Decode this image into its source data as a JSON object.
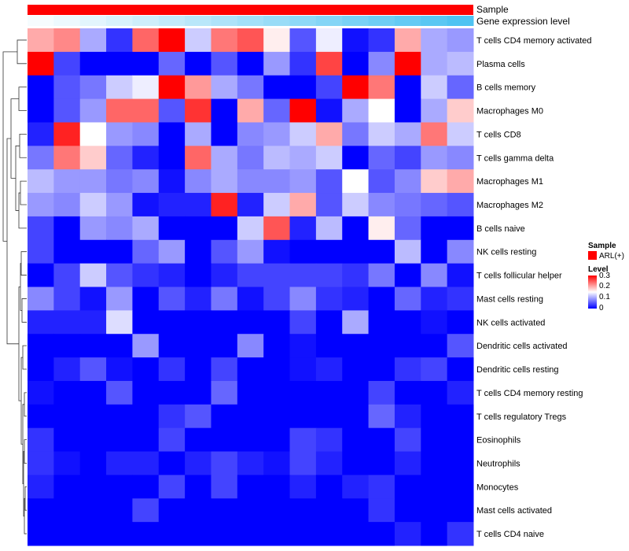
{
  "chart_data": {
    "type": "heatmap",
    "annotations": {
      "sample_label": "Sample",
      "gene_label": "Gene expression level"
    },
    "rows": [
      "T cells CD4 memory activated",
      "Plasma cells",
      "B cells memory",
      "Macrophages M0",
      "T cells CD8",
      "T cells gamma delta",
      "Macrophages M1",
      "Macrophages M2",
      "B cells naive",
      "NK cells resting",
      "T cells follicular helper",
      "Mast cells resting",
      "NK cells activated",
      "Dendritic cells activated",
      "Dendritic cells resting",
      "T cells CD4 memory resting",
      "T cells regulatory  Tregs",
      "Eosinophils",
      "Neutrophils",
      "Monocytes",
      "Mast cells activated",
      "T cells CD4 naive"
    ],
    "values": [
      [
        0.2,
        0.22,
        0.1,
        0.03,
        0.24,
        0.3,
        0.12,
        0.23,
        0.25,
        0.16,
        0.05,
        0.14,
        0.01,
        0.03,
        0.2,
        0.1,
        0.09
      ],
      [
        0.3,
        0.04,
        0.0,
        0.0,
        0.0,
        0.06,
        0.0,
        0.05,
        0.0,
        0.09,
        0.03,
        0.26,
        0.0,
        0.08,
        0.3,
        0.1,
        0.11
      ],
      [
        0.0,
        0.05,
        0.07,
        0.12,
        0.14,
        0.3,
        0.21,
        0.1,
        0.07,
        0.0,
        0.0,
        0.04,
        0.3,
        0.23,
        0.0,
        0.12,
        0.06
      ],
      [
        0.0,
        0.05,
        0.09,
        0.24,
        0.24,
        0.05,
        0.27,
        0.0,
        0.2,
        0.06,
        0.3,
        0.01,
        0.1,
        0.15,
        0.0,
        0.1,
        0.18
      ],
      [
        0.02,
        0.28,
        0.15,
        0.09,
        0.08,
        0.0,
        0.1,
        0.0,
        0.08,
        0.09,
        0.12,
        0.2,
        0.07,
        0.12,
        0.1,
        0.23,
        0.12
      ],
      [
        0.07,
        0.23,
        0.18,
        0.06,
        0.02,
        0.0,
        0.24,
        0.1,
        0.07,
        0.11,
        0.1,
        0.12,
        0.0,
        0.06,
        0.04,
        0.09,
        0.08
      ],
      [
        0.11,
        0.09,
        0.09,
        0.07,
        0.08,
        0.01,
        0.08,
        0.1,
        0.08,
        0.08,
        0.09,
        0.05,
        0.15,
        0.05,
        0.08,
        0.18,
        0.2
      ],
      [
        0.09,
        0.08,
        0.12,
        0.09,
        0.01,
        0.02,
        0.02,
        0.28,
        0.02,
        0.12,
        0.2,
        0.05,
        0.12,
        0.08,
        0.07,
        0.06,
        0.05
      ],
      [
        0.04,
        0.0,
        0.09,
        0.08,
        0.1,
        0.0,
        0.0,
        0.0,
        0.12,
        0.25,
        0.02,
        0.11,
        0.0,
        0.16,
        0.06,
        0.0,
        0.0
      ],
      [
        0.04,
        0.0,
        0.0,
        0.0,
        0.06,
        0.09,
        0.0,
        0.05,
        0.09,
        0.01,
        0.0,
        0.0,
        0.0,
        0.0,
        0.11,
        0.0,
        0.08
      ],
      [
        0.0,
        0.04,
        0.12,
        0.05,
        0.03,
        0.02,
        0.0,
        0.02,
        0.04,
        0.04,
        0.04,
        0.04,
        0.03,
        0.07,
        0.0,
        0.08,
        0.01
      ],
      [
        0.08,
        0.04,
        0.01,
        0.09,
        0.0,
        0.05,
        0.02,
        0.07,
        0.01,
        0.04,
        0.08,
        0.03,
        0.02,
        0.0,
        0.06,
        0.02,
        0.03
      ],
      [
        0.02,
        0.02,
        0.02,
        0.13,
        0.0,
        0.0,
        0.0,
        0.0,
        0.0,
        0.0,
        0.04,
        0.0,
        0.1,
        0.0,
        0.0,
        0.01,
        0.0
      ],
      [
        0.0,
        0.0,
        0.0,
        0.0,
        0.09,
        0.0,
        0.0,
        0.0,
        0.08,
        0.0,
        0.01,
        0.0,
        0.0,
        0.0,
        0.0,
        0.0,
        0.05
      ],
      [
        0.0,
        0.02,
        0.05,
        0.01,
        0.0,
        0.03,
        0.0,
        0.04,
        0.0,
        0.0,
        0.01,
        0.02,
        0.0,
        0.0,
        0.03,
        0.04,
        0.0
      ],
      [
        0.01,
        0.0,
        0.0,
        0.05,
        0.0,
        0.0,
        0.0,
        0.06,
        0.0,
        0.0,
        0.0,
        0.0,
        0.0,
        0.04,
        0.0,
        0.0,
        0.02
      ],
      [
        0.0,
        0.0,
        0.0,
        0.0,
        0.0,
        0.03,
        0.05,
        0.0,
        0.0,
        0.0,
        0.0,
        0.0,
        0.0,
        0.06,
        0.02,
        0.0,
        0.0
      ],
      [
        0.03,
        0.0,
        0.0,
        0.0,
        0.0,
        0.04,
        0.0,
        0.0,
        0.0,
        0.0,
        0.04,
        0.03,
        0.0,
        0.0,
        0.04,
        0.0,
        0.0
      ],
      [
        0.03,
        0.01,
        0.0,
        0.02,
        0.02,
        0.0,
        0.02,
        0.04,
        0.02,
        0.01,
        0.04,
        0.02,
        0.0,
        0.0,
        0.02,
        0.0,
        0.0
      ],
      [
        0.02,
        0.0,
        0.0,
        0.0,
        0.0,
        0.04,
        0.0,
        0.04,
        0.0,
        0.0,
        0.02,
        0.0,
        0.02,
        0.03,
        0.0,
        0.0,
        0.0
      ],
      [
        0.0,
        0.0,
        0.0,
        0.0,
        0.04,
        0.0,
        0.0,
        0.0,
        0.0,
        0.0,
        0.0,
        0.0,
        0.0,
        0.03,
        0.0,
        0.0,
        0.0
      ],
      [
        0.0,
        0.0,
        0.0,
        0.0,
        0.0,
        0.0,
        0.0,
        0.0,
        0.0,
        0.0,
        0.0,
        0.0,
        0.0,
        0.0,
        0.02,
        0.0,
        0.03
      ]
    ],
    "gene_expression_level": [
      0.05,
      0.1,
      0.16,
      0.22,
      0.28,
      0.34,
      0.4,
      0.46,
      0.52,
      0.58,
      0.64,
      0.7,
      0.76,
      0.82,
      0.88,
      0.94,
      1.0
    ],
    "color_scale": {
      "min": 0,
      "mid": 0.15,
      "max": 0.3,
      "low_color": "#0000ff",
      "mid_color": "#ffffff",
      "high_color": "#ff0000"
    },
    "sample_color": "#ff0000",
    "gene_low_color": "#ffffff",
    "gene_high_color": "#4fc3f2",
    "legend": {
      "position": "right",
      "sample_title": "Sample",
      "sample_entry": "ARL(+)",
      "level_title": "Level",
      "ticks": [
        "0.3",
        "0.2",
        "0.1",
        "0"
      ]
    }
  }
}
